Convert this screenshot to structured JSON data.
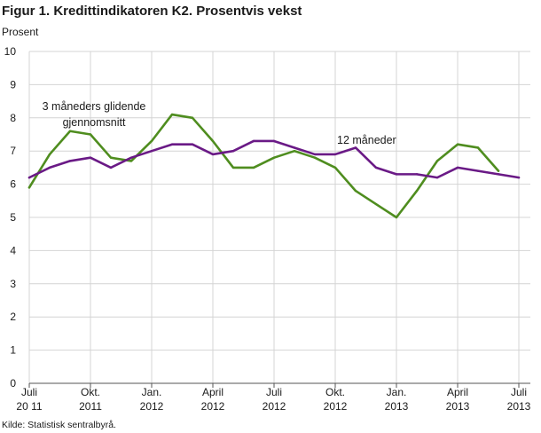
{
  "chart_data": {
    "type": "line",
    "title": "Figur 1. Kredittindikatoren K2. Prosentvis vekst",
    "xlabel": "",
    "ylabel": "Prosent",
    "ylim": [
      0,
      10
    ],
    "yticks": [
      0,
      1,
      2,
      3,
      4,
      5,
      6,
      7,
      8,
      9,
      10
    ],
    "grid": true,
    "legend": "none",
    "x": [
      "2011-07",
      "2011-08",
      "2011-09",
      "2011-10",
      "2011-11",
      "2011-12",
      "2012-01",
      "2012-02",
      "2012-03",
      "2012-04",
      "2012-05",
      "2012-06",
      "2012-07",
      "2012-08",
      "2012-09",
      "2012-10",
      "2012-11",
      "2012-12",
      "2013-01",
      "2013-02",
      "2013-03",
      "2013-04",
      "2013-05",
      "2013-06",
      "2013-07"
    ],
    "xticks": [
      {
        "x": "2011-07",
        "line1": "Juli",
        "line2": "20 11"
      },
      {
        "x": "2011-10",
        "line1": "Okt.",
        "line2": "2011"
      },
      {
        "x": "2012-01",
        "line1": "Jan.",
        "line2": "2012"
      },
      {
        "x": "2012-04",
        "line1": "April",
        "line2": "2012"
      },
      {
        "x": "2012-07",
        "line1": "Juli",
        "line2": "2012"
      },
      {
        "x": "2012-10",
        "line1": "Okt.",
        "line2": "2012"
      },
      {
        "x": "2013-01",
        "line1": "Jan.",
        "line2": "2013"
      },
      {
        "x": "2013-04",
        "line1": "April",
        "line2": "2013"
      },
      {
        "x": "2013-07",
        "line1": "Juli",
        "line2": "2013"
      }
    ],
    "series": [
      {
        "label_lines": [
          "3 måneders glidende",
          "gjennomsnitt"
        ],
        "color": "#4f8d1f",
        "values": [
          5.9,
          6.9,
          7.6,
          7.5,
          6.8,
          6.7,
          7.3,
          8.1,
          8.0,
          7.3,
          6.5,
          6.5,
          6.8,
          7.0,
          6.8,
          6.5,
          5.8,
          5.4,
          5.0,
          5.8,
          6.7,
          7.2,
          7.1,
          6.4,
          null
        ]
      },
      {
        "label_lines": [
          "12 måneder"
        ],
        "color": "#6a1a86",
        "values": [
          6.2,
          6.5,
          6.7,
          6.8,
          6.5,
          6.8,
          7.0,
          7.2,
          7.2,
          6.9,
          7.0,
          7.3,
          7.3,
          7.1,
          6.9,
          6.9,
          7.1,
          6.5,
          6.3,
          6.3,
          6.2,
          6.5,
          6.4,
          6.3,
          6.2
        ]
      }
    ]
  },
  "source": "Kilde: Statistisk sentralbyrå."
}
